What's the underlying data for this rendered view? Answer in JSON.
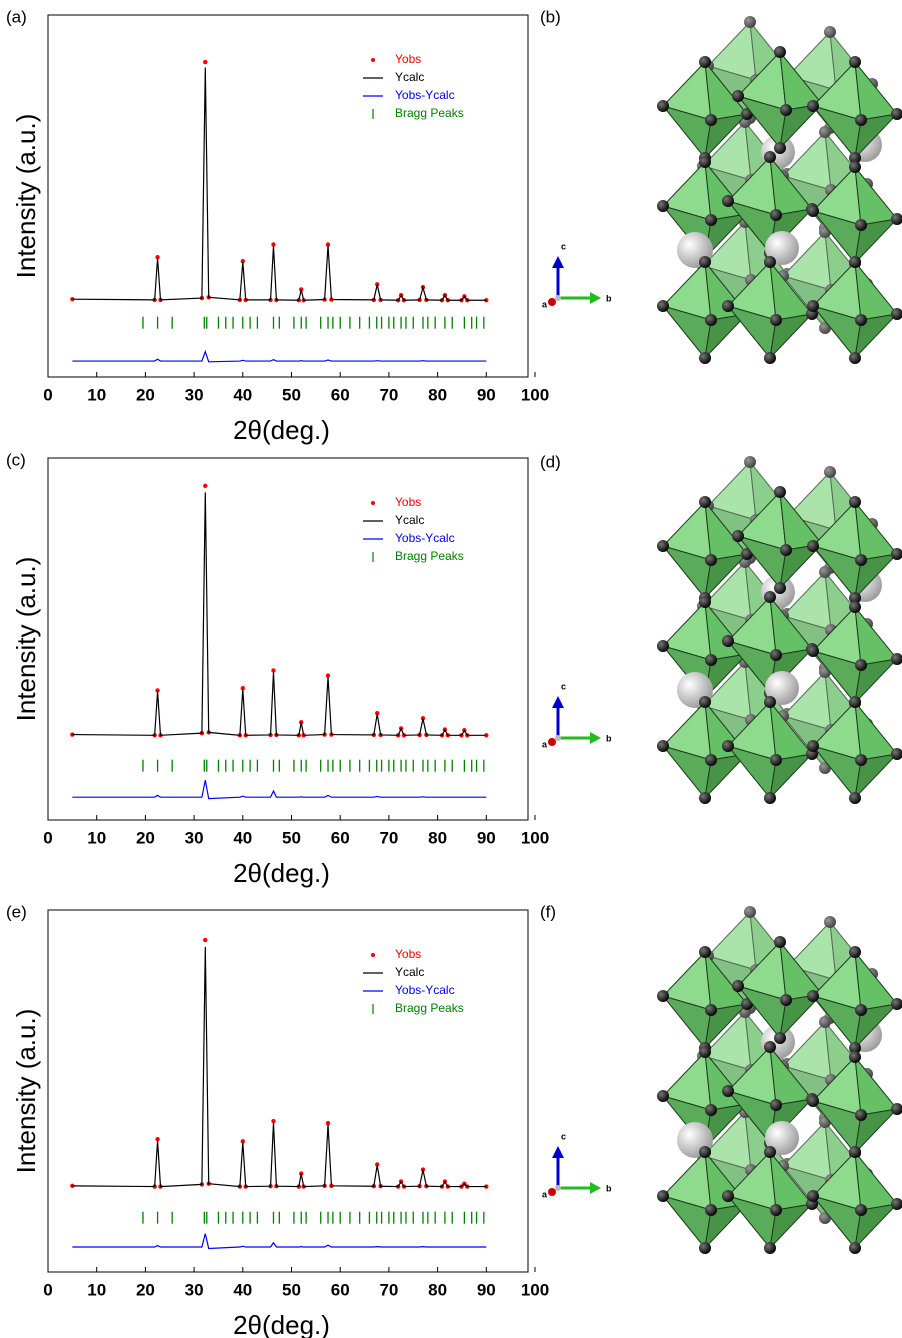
{
  "chart_data": [
    {
      "type": "line",
      "panel_label": "(a)",
      "x_label": "2θ(deg.)",
      "y_label": "Intensity (a.u.)",
      "xlim": [
        0,
        100
      ],
      "xticks": [
        0,
        10,
        20,
        30,
        40,
        50,
        60,
        70,
        80,
        90,
        100
      ],
      "ylim": [
        0,
        100
      ],
      "x": [
        5,
        21.9,
        22.5,
        23.1,
        31.6,
        32.3,
        33.0,
        39.4,
        40.0,
        40.6,
        45.7,
        46.3,
        46.9,
        51.5,
        52.0,
        52.5,
        56.8,
        57.5,
        58.2,
        66.9,
        67.6,
        68.3,
        71.9,
        72.5,
        73.1,
        76.3,
        77.0,
        77.7,
        80.9,
        81.5,
        82.1,
        84.9,
        85.5,
        86.1,
        90
      ],
      "series": [
        {
          "name": "Yobs",
          "color": "#ff0000",
          "mode": "markers",
          "values": [
            21.5,
            21.3,
            33.1,
            21.3,
            21.8,
            87,
            22,
            21.3,
            32,
            21.3,
            21.3,
            36.6,
            21.3,
            21.2,
            24.2,
            21.2,
            21.4,
            36.6,
            21.4,
            21.3,
            25.6,
            21.3,
            21.2,
            22.6,
            21.2,
            21.3,
            24.8,
            21.3,
            21.2,
            22.6,
            21.2,
            21.2,
            22.3,
            21.2,
            21.2
          ]
        },
        {
          "name": "Ycalc",
          "color": "#000000",
          "mode": "line",
          "values": [
            21.5,
            21.3,
            32.8,
            21.3,
            21.8,
            85.5,
            22,
            21.3,
            31.8,
            21.3,
            21.3,
            36.2,
            21.3,
            21.2,
            24.1,
            21.2,
            21.4,
            36.3,
            21.4,
            21.3,
            25.5,
            21.3,
            21.2,
            22.5,
            21.2,
            21.3,
            24.7,
            21.3,
            21.2,
            22.5,
            21.2,
            21.2,
            22.2,
            21.2,
            21.2
          ]
        },
        {
          "name": "Yobs-Ycalc",
          "color": "#0000ff",
          "mode": "line",
          "values": [
            4.4,
            4.4,
            4.9,
            4.4,
            4.4,
            7,
            4.2,
            4.4,
            4.6,
            4.4,
            4.4,
            4.8,
            4.4,
            4.4,
            4.5,
            4.4,
            4.4,
            4.7,
            4.4,
            4.4,
            4.5,
            4.4,
            4.4,
            4.4,
            4.4,
            4.4,
            4.5,
            4.4,
            4.4,
            4.4,
            4.4,
            4.4,
            4.4,
            4.4,
            4.4
          ]
        }
      ],
      "bragg_peaks": {
        "name": "Bragg Peaks",
        "color": "#008000",
        "x": [
          19.5,
          22.5,
          25.5,
          32.1,
          32.6,
          35,
          36.5,
          38,
          40,
          41.5,
          43,
          46.3,
          47.5,
          50.5,
          52,
          53,
          56,
          57.5,
          58.5,
          60,
          62,
          64,
          66,
          67.5,
          68.5,
          70,
          71,
          72.5,
          73.5,
          75,
          77,
          78,
          79.5,
          81.5,
          83,
          85.5,
          87,
          88,
          89.5
        ]
      }
    },
    {
      "type": "line",
      "panel_label": "(c)",
      "x_label": "2θ(deg.)",
      "y_label": "Intensity (a.u.)",
      "xlim": [
        0,
        100
      ],
      "xticks": [
        0,
        10,
        20,
        30,
        40,
        50,
        60,
        70,
        80,
        90,
        100
      ],
      "ylim": [
        0,
        100
      ],
      "x": [
        5,
        21.9,
        22.5,
        23.1,
        31.6,
        32.3,
        33.0,
        39.4,
        40.0,
        40.6,
        45.7,
        46.3,
        46.9,
        51.5,
        52.0,
        52.5,
        56.8,
        57.5,
        58.2,
        66.9,
        67.6,
        68.3,
        71.9,
        72.5,
        73.1,
        76.3,
        77.0,
        77.7,
        80.9,
        81.5,
        82.1,
        84.9,
        85.5,
        86.1,
        90
      ],
      "series": [
        {
          "name": "Yobs",
          "color": "#ff0000",
          "mode": "markers",
          "values": [
            23.6,
            23.4,
            35.8,
            23.4,
            24,
            92.3,
            24.2,
            23.4,
            36.4,
            23.4,
            23.5,
            41.3,
            23.5,
            23.4,
            27,
            23.4,
            23.6,
            39.9,
            23.6,
            23.5,
            29.5,
            23.5,
            23.4,
            25.3,
            23.4,
            23.5,
            28.1,
            23.5,
            23.4,
            25,
            23.4,
            23.4,
            24.8,
            23.4,
            23.4
          ]
        },
        {
          "name": "Ycalc",
          "color": "#000000",
          "mode": "line",
          "values": [
            23.6,
            23.4,
            35.5,
            23.4,
            24,
            90.5,
            24.2,
            23.4,
            36.1,
            23.4,
            23.5,
            40.8,
            23.5,
            23.4,
            26.9,
            23.4,
            23.6,
            39.5,
            23.6,
            23.5,
            29.3,
            23.5,
            23.4,
            25.2,
            23.4,
            23.5,
            28,
            23.5,
            23.4,
            24.9,
            23.4,
            23.4,
            24.7,
            23.4,
            23.4
          ]
        },
        {
          "name": "Yobs-Ycalc",
          "color": "#0000ff",
          "mode": "line",
          "values": [
            6.3,
            6.3,
            6.8,
            6.3,
            6.3,
            11,
            5.9,
            6.3,
            6.6,
            6.3,
            6.3,
            8,
            6.3,
            6.3,
            6.4,
            6.3,
            6.3,
            6.8,
            6.3,
            6.3,
            6.5,
            6.3,
            6.3,
            6.3,
            6.3,
            6.3,
            6.4,
            6.3,
            6.3,
            6.3,
            6.3,
            6.3,
            6.3,
            6.3,
            6.3
          ]
        }
      ],
      "bragg_peaks": {
        "name": "Bragg Peaks",
        "color": "#008000",
        "x": [
          19.5,
          22.5,
          25.5,
          32.1,
          32.6,
          35,
          36.5,
          38,
          40,
          41.5,
          43,
          46.3,
          47.5,
          50.5,
          52,
          53,
          56,
          57.5,
          58.5,
          60,
          62,
          64,
          66,
          67.5,
          68.5,
          70,
          71,
          72.5,
          73.5,
          75,
          77,
          78,
          79.5,
          81.5,
          83,
          85.5,
          87,
          88,
          89.5
        ]
      }
    },
    {
      "type": "line",
      "panel_label": "(e)",
      "x_label": "2θ(deg.)",
      "y_label": "Intensity (a.u.)",
      "xlim": [
        0,
        100
      ],
      "xticks": [
        0,
        10,
        20,
        30,
        40,
        50,
        60,
        70,
        80,
        90,
        100
      ],
      "ylim": [
        0,
        100
      ],
      "x": [
        5,
        21.9,
        22.5,
        23.1,
        31.6,
        32.3,
        33.0,
        39.4,
        40.0,
        40.6,
        45.7,
        46.3,
        46.9,
        51.5,
        52.0,
        52.5,
        56.8,
        57.5,
        58.2,
        66.9,
        67.6,
        68.3,
        71.9,
        72.5,
        73.1,
        76.3,
        77.0,
        77.7,
        80.9,
        81.5,
        82.1,
        84.9,
        85.5,
        86.1,
        90
      ],
      "series": [
        {
          "name": "Yobs",
          "color": "#ff0000",
          "mode": "markers",
          "values": [
            23.8,
            23.6,
            36.7,
            23.6,
            24.2,
            91.7,
            24.4,
            23.6,
            36.1,
            23.6,
            23.7,
            41.7,
            23.7,
            23.6,
            27.2,
            23.6,
            23.8,
            41.1,
            23.8,
            23.7,
            29.7,
            23.7,
            23.6,
            25,
            23.6,
            23.7,
            28.3,
            23.7,
            23.6,
            25,
            23.6,
            23.6,
            24.4,
            23.6,
            23.6
          ]
        },
        {
          "name": "Ycalc",
          "color": "#000000",
          "mode": "line",
          "values": [
            23.8,
            23.6,
            36.3,
            23.6,
            24.2,
            89.8,
            24.4,
            23.6,
            35.8,
            23.6,
            23.7,
            41.2,
            23.7,
            23.6,
            27.1,
            23.6,
            23.8,
            40.7,
            23.8,
            23.7,
            29.5,
            23.7,
            23.6,
            24.9,
            23.6,
            23.7,
            28.2,
            23.7,
            23.6,
            24.9,
            23.6,
            23.6,
            24.3,
            23.6,
            23.6
          ]
        },
        {
          "name": "Yobs-Ycalc",
          "color": "#0000ff",
          "mode": "line",
          "values": [
            6.9,
            6.9,
            7.3,
            6.9,
            6.9,
            10.6,
            6.5,
            6.9,
            7.1,
            6.9,
            6.9,
            8.1,
            6.9,
            6.9,
            7,
            6.9,
            6.9,
            7.4,
            6.9,
            6.9,
            7,
            6.9,
            6.9,
            6.9,
            6.9,
            6.9,
            7,
            6.9,
            6.9,
            6.9,
            6.9,
            6.9,
            6.9,
            6.9,
            6.9
          ]
        }
      ],
      "bragg_peaks": {
        "name": "Bragg Peaks",
        "color": "#008000",
        "x": [
          19.5,
          22.5,
          25.5,
          32.1,
          32.6,
          35,
          36.5,
          38,
          40,
          41.5,
          43,
          46.3,
          47.5,
          50.5,
          52,
          53,
          56,
          57.5,
          58.5,
          60,
          62,
          64,
          66,
          67.5,
          68.5,
          70,
          71,
          72.5,
          73.5,
          75,
          77,
          78,
          79.5,
          81.5,
          83,
          85.5,
          87,
          88,
          89.5
        ]
      }
    }
  ],
  "structure_panels": [
    {
      "label": "(b)",
      "axes": [
        "c",
        "a",
        "b"
      ]
    },
    {
      "label": "(d)",
      "axes": [
        "c",
        "a",
        "b"
      ]
    },
    {
      "label": "(f)",
      "axes": [
        "c",
        "a",
        "b"
      ]
    }
  ]
}
